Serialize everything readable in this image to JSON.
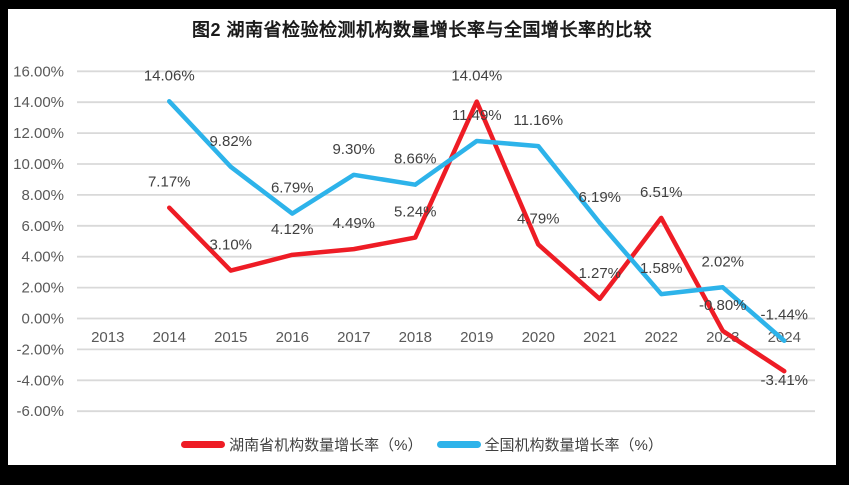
{
  "title": "图2 湖南省检验检测机构数量增长率与全国增长率的比较",
  "colors": {
    "frame_bg": "#000000",
    "panel_bg": "#FFFFFF",
    "grid": "#D9D9D9",
    "axis_text": "#595959",
    "data_label_text": "#404040",
    "hunan_red": "#EE1C25",
    "national_blue": "#2DB3EA"
  },
  "chart_data": {
    "type": "line",
    "title": "图2 湖南省检验检测机构数量增长率与全国增长率的比较",
    "categories": [
      "2013",
      "2014",
      "2015",
      "2016",
      "2017",
      "2018",
      "2019",
      "2020",
      "2021",
      "2022",
      "2023",
      "2024"
    ],
    "y_ticks": [
      "16.00%",
      "14.00%",
      "12.00%",
      "10.00%",
      "8.00%",
      "6.00%",
      "4.00%",
      "2.00%",
      "0.00%",
      "-2.00%",
      "-4.00%",
      "-6.00%"
    ],
    "ylim": [
      -6,
      16
    ],
    "ytick_step": 2,
    "grid": true,
    "legend_position": "bottom",
    "xlabel": "",
    "ylabel": "",
    "series": [
      {
        "name": "湖南省机构数量增长率（%）",
        "color": "#EE1C25",
        "values": [
          null,
          7.17,
          3.1,
          4.12,
          4.49,
          5.24,
          14.04,
          4.79,
          1.27,
          6.51,
          -0.8,
          -3.41
        ],
        "labels": [
          "",
          "7.17%",
          "3.10%",
          "4.12%",
          "4.49%",
          "5.24%",
          "14.04%",
          "4.79%",
          "1.27%",
          "6.51%",
          "-0.80%",
          "-3.41%"
        ]
      },
      {
        "name": "全国机构数量增长率（%）",
        "color": "#2DB3EA",
        "values": [
          null,
          14.06,
          9.82,
          6.79,
          9.3,
          8.66,
          11.49,
          11.16,
          6.19,
          1.58,
          2.02,
          -1.44
        ],
        "labels": [
          "",
          "14.06%",
          "9.82%",
          "6.79%",
          "9.30%",
          "8.66%",
          "11.49%",
          "11.16%",
          "6.19%",
          "1.58%",
          "2.02%",
          "-1.44%"
        ]
      }
    ]
  }
}
